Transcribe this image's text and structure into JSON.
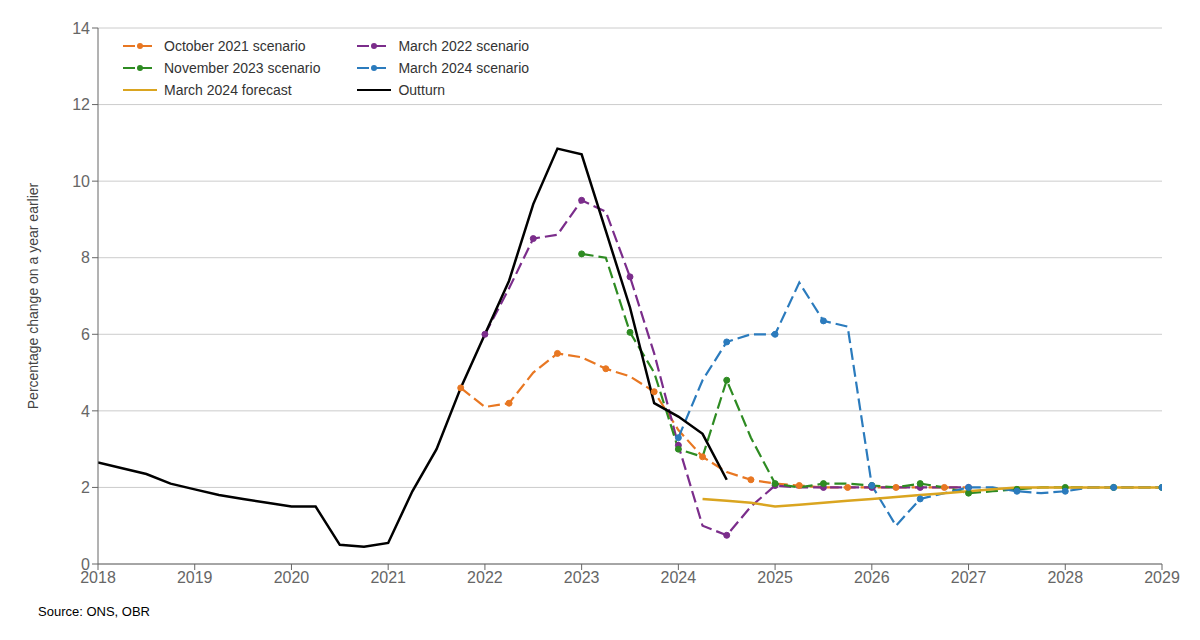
{
  "chart_data": {
    "type": "line",
    "y_label": "Percentage change on a year earlier",
    "annotations": [
      "Source: ONS, OBR"
    ],
    "xlim": [
      2018,
      2029
    ],
    "ylim": [
      0,
      14
    ],
    "xticks": [
      2018,
      2019,
      2020,
      2021,
      2022,
      2023,
      2024,
      2025,
      2026,
      2027,
      2028,
      2029
    ],
    "yticks": [
      0,
      2,
      4,
      6,
      8,
      10,
      12,
      14
    ],
    "grid": "y",
    "legend": "upper left",
    "series": [
      {
        "name": "October 2021 scenario",
        "color": "#E87722",
        "line_style": "dashed",
        "marker": "circle",
        "x": [
          2021.75,
          2022.0,
          2022.25,
          2022.5,
          2022.75,
          2023.0,
          2023.25,
          2023.5,
          2023.75,
          2024.0,
          2024.25,
          2024.5,
          2024.75,
          2025.0,
          2025.25,
          2025.5,
          2025.75,
          2026.0,
          2026.25,
          2026.5,
          2026.75,
          2027.0
        ],
        "values": [
          4.6,
          4.1,
          4.2,
          5.0,
          5.5,
          5.4,
          5.1,
          4.9,
          4.5,
          3.5,
          2.8,
          2.4,
          2.2,
          2.1,
          2.05,
          2.0,
          2.0,
          2.0,
          2.0,
          2.0,
          2.0,
          2.0
        ]
      },
      {
        "name": "March 2022 scenario",
        "color": "#7B2D8B",
        "line_style": "dashed",
        "marker": "circle",
        "x": [
          2022.0,
          2022.25,
          2022.5,
          2022.75,
          2023.0,
          2023.25,
          2023.5,
          2023.75,
          2024.0,
          2024.25,
          2024.5,
          2024.75,
          2025.0,
          2025.25,
          2025.5,
          2025.75,
          2026.0,
          2026.25,
          2026.5,
          2026.75,
          2027.0
        ],
        "values": [
          6.0,
          7.2,
          8.5,
          8.6,
          9.5,
          9.2,
          7.5,
          5.5,
          3.1,
          1.0,
          0.75,
          1.5,
          2.05,
          2.0,
          2.0,
          2.0,
          2.0,
          2.0,
          2.0,
          2.0,
          2.0
        ]
      },
      {
        "name": "November 2023 scenario",
        "color": "#2E8B22",
        "line_style": "dashed",
        "marker": "circle",
        "x": [
          2023.0,
          2023.25,
          2023.5,
          2023.75,
          2024.0,
          2024.25,
          2024.5,
          2024.75,
          2025.0,
          2025.25,
          2025.5,
          2025.75,
          2026.0,
          2026.25,
          2026.5,
          2026.75,
          2027.0,
          2027.25,
          2027.5,
          2027.75,
          2028.0,
          2028.25,
          2028.5,
          2028.75,
          2029.0
        ],
        "values": [
          8.1,
          8.0,
          6.05,
          5.0,
          3.0,
          2.8,
          4.8,
          3.3,
          2.1,
          2.0,
          2.1,
          2.1,
          2.05,
          2.0,
          2.1,
          2.0,
          1.85,
          1.9,
          1.95,
          2.0,
          2.0,
          2.0,
          2.0,
          2.0,
          2.0
        ]
      },
      {
        "name": "March 2024 scenario",
        "color": "#2B7BBD",
        "line_style": "dashed",
        "marker": "circle",
        "x": [
          2024.0,
          2024.25,
          2024.5,
          2024.75,
          2025.0,
          2025.25,
          2025.5,
          2025.75,
          2026.0,
          2026.25,
          2026.5,
          2026.75,
          2027.0,
          2027.25,
          2027.5,
          2027.75,
          2028.0,
          2028.25,
          2028.5,
          2028.75,
          2029.0
        ],
        "values": [
          3.3,
          4.8,
          5.8,
          6.0,
          6.0,
          7.35,
          6.35,
          6.2,
          2.05,
          1.0,
          1.7,
          1.85,
          2.0,
          2.0,
          1.9,
          1.85,
          1.9,
          2.0,
          2.0,
          2.0,
          2.0
        ]
      },
      {
        "name": "March 2024 forecast",
        "color": "#DAA520",
        "line_style": "solid",
        "x": [
          2024.25,
          2024.5,
          2024.75,
          2025.0,
          2025.25,
          2025.5,
          2025.75,
          2026.0,
          2026.25,
          2026.5,
          2026.75,
          2027.0,
          2027.25,
          2027.5,
          2027.75,
          2028.0,
          2028.25,
          2028.5,
          2028.75,
          2029.0
        ],
        "values": [
          1.7,
          1.65,
          1.6,
          1.5,
          1.55,
          1.6,
          1.65,
          1.7,
          1.75,
          1.8,
          1.85,
          1.9,
          1.95,
          2.0,
          2.0,
          2.0,
          2.0,
          2.0,
          2.0,
          2.0
        ]
      },
      {
        "name": "Outturn",
        "color": "#000000",
        "line_style": "solid",
        "x": [
          2018.0,
          2018.25,
          2018.5,
          2018.75,
          2019.0,
          2019.25,
          2019.5,
          2019.75,
          2020.0,
          2020.25,
          2020.5,
          2020.75,
          2021.0,
          2021.25,
          2021.5,
          2021.75,
          2022.0,
          2022.25,
          2022.5,
          2022.75,
          2023.0,
          2023.25,
          2023.5,
          2023.75,
          2024.0,
          2024.25,
          2024.5
        ],
        "values": [
          2.65,
          2.5,
          2.35,
          2.1,
          1.95,
          1.8,
          1.7,
          1.6,
          1.5,
          1.5,
          0.5,
          0.45,
          0.55,
          1.9,
          3.0,
          4.6,
          6.0,
          7.4,
          9.4,
          10.85,
          10.7,
          8.7,
          6.7,
          4.2,
          3.85,
          3.4,
          2.2
        ]
      }
    ]
  }
}
